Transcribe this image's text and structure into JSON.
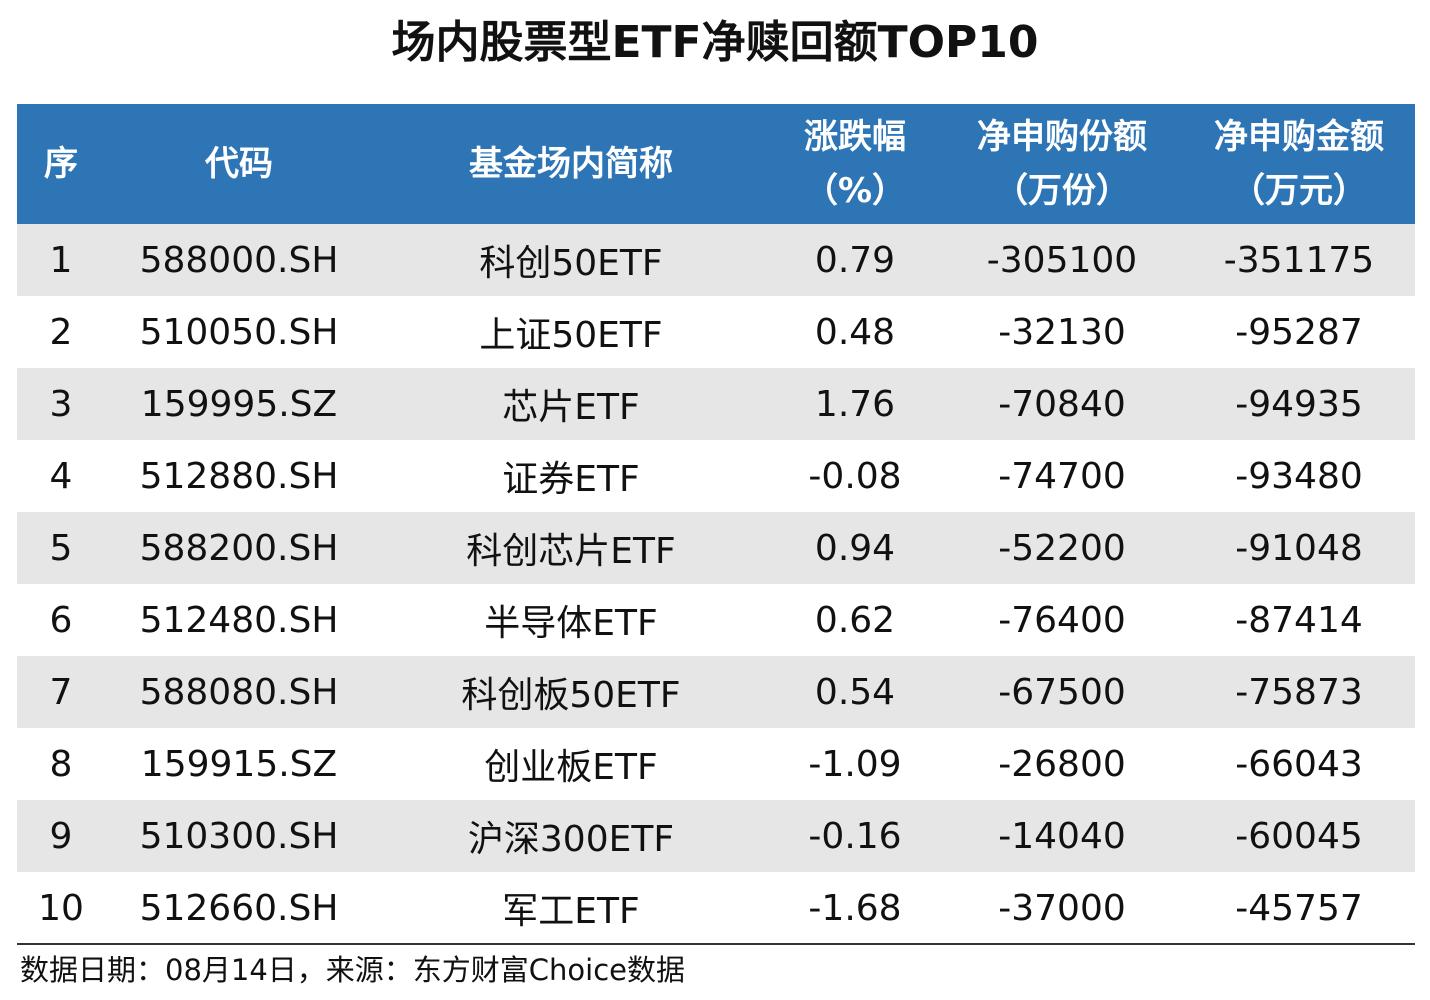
{
  "title": "场内股票型ETF净赎回额TOP10",
  "table": {
    "headers": [
      {
        "line1": "序",
        "line2": ""
      },
      {
        "line1": "代码",
        "line2": ""
      },
      {
        "line1": "基金场内简称",
        "line2": ""
      },
      {
        "line1": "涨跌幅",
        "line2": "（%）"
      },
      {
        "line1": "净申购份额",
        "line2": "（万份）"
      },
      {
        "line1": "净申购金额",
        "line2": "（万元）"
      }
    ],
    "rows": [
      [
        "1",
        "588000.SH",
        "科创50ETF",
        "0.79",
        "-305100",
        "-351175"
      ],
      [
        "2",
        "510050.SH",
        "上证50ETF",
        "0.48",
        "-32130",
        "-95287"
      ],
      [
        "3",
        "159995.SZ",
        "芯片ETF",
        "1.76",
        "-70840",
        "-94935"
      ],
      [
        "4",
        "512880.SH",
        "证券ETF",
        "-0.08",
        "-74700",
        "-93480"
      ],
      [
        "5",
        "588200.SH",
        "科创芯片ETF",
        "0.94",
        "-52200",
        "-91048"
      ],
      [
        "6",
        "512480.SH",
        "半导体ETF",
        "0.62",
        "-76400",
        "-87414"
      ],
      [
        "7",
        "588080.SH",
        "科创板50ETF",
        "0.54",
        "-67500",
        "-75873"
      ],
      [
        "8",
        "159915.SZ",
        "创业板ETF",
        "-1.09",
        "-26800",
        "-66043"
      ],
      [
        "9",
        "510300.SH",
        "沪深300ETF",
        "-0.16",
        "-14040",
        "-60045"
      ],
      [
        "10",
        "512660.SH",
        "军工ETF",
        "-1.68",
        "-37000",
        "-45757"
      ]
    ]
  },
  "footer": "数据日期：08月14日，来源：东方财富Choice数据",
  "colors": {
    "header_bg": "#2e75b6",
    "header_text": "#ffffff",
    "row_alt_bg": "#e6e6e6"
  }
}
